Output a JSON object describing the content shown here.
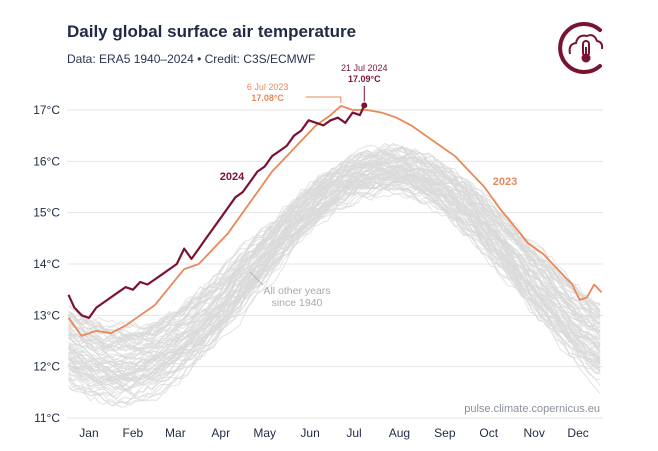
{
  "header": {
    "title": "Daily global surface air temperature",
    "subtitle": "Data: ERA5 1940–2024 • Credit: C3S/ECMWF"
  },
  "logo": {
    "icon": "thermometer-cloud-icon",
    "color": "#7a1330"
  },
  "chart_data": {
    "type": "line",
    "title": "Daily global surface air temperature",
    "xlabel": "",
    "ylabel": "",
    "x_unit": "day of year",
    "xlim": [
      0,
      366
    ],
    "ylim": [
      11,
      17.5
    ],
    "y_ticks": [
      11,
      12,
      13,
      14,
      15,
      16,
      17
    ],
    "y_tick_labels": [
      "11°C",
      "12°C",
      "13°C",
      "14°C",
      "15°C",
      "16°C",
      "17°C"
    ],
    "x_ticks": [
      15,
      45,
      74,
      105,
      135,
      166,
      196,
      227,
      258,
      288,
      319,
      349
    ],
    "x_tick_labels": [
      "Jan",
      "Feb",
      "Mar",
      "Apr",
      "May",
      "Jun",
      "Jul",
      "Aug",
      "Sep",
      "Oct",
      "Nov",
      "Dec"
    ],
    "grid": "horizontal",
    "colors": {
      "y2024": "#7a1330",
      "y2023": "#e8895a",
      "other": "#d9d9d9"
    },
    "series": [
      {
        "name": "2024",
        "x": [
          1,
          5,
          10,
          15,
          20,
          25,
          30,
          35,
          40,
          45,
          50,
          55,
          60,
          65,
          70,
          75,
          80,
          85,
          90,
          95,
          100,
          105,
          110,
          115,
          120,
          125,
          130,
          135,
          140,
          145,
          150,
          155,
          160,
          165,
          170,
          175,
          180,
          185,
          190,
          195,
          200,
          203
        ],
        "y": [
          13.4,
          13.15,
          13.0,
          12.95,
          13.15,
          13.25,
          13.35,
          13.45,
          13.55,
          13.5,
          13.65,
          13.6,
          13.7,
          13.8,
          13.9,
          14.0,
          14.3,
          14.1,
          14.3,
          14.5,
          14.7,
          14.9,
          15.1,
          15.3,
          15.4,
          15.6,
          15.8,
          15.9,
          16.1,
          16.2,
          16.3,
          16.5,
          16.6,
          16.8,
          16.75,
          16.7,
          16.8,
          16.85,
          16.75,
          16.95,
          16.9,
          17.09
        ]
      },
      {
        "name": "2023",
        "x": [
          1,
          10,
          20,
          30,
          40,
          50,
          60,
          70,
          80,
          90,
          100,
          110,
          120,
          130,
          140,
          150,
          160,
          170,
          180,
          187,
          195,
          205,
          215,
          225,
          235,
          245,
          255,
          265,
          275,
          285,
          295,
          305,
          315,
          325,
          335,
          345,
          350,
          355,
          360,
          365
        ],
        "y": [
          12.95,
          12.6,
          12.7,
          12.65,
          12.8,
          13.0,
          13.2,
          13.55,
          13.9,
          14.0,
          14.3,
          14.6,
          15.0,
          15.4,
          15.8,
          16.1,
          16.4,
          16.7,
          16.9,
          17.08,
          17.0,
          17.0,
          16.95,
          16.85,
          16.7,
          16.5,
          16.3,
          16.1,
          15.8,
          15.5,
          15.1,
          14.75,
          14.4,
          14.2,
          13.9,
          13.6,
          13.3,
          13.35,
          13.6,
          13.45
        ]
      }
    ],
    "other_years": {
      "name": "",
      "count": 83,
      "start": 1940,
      "mean_january": 12.1,
      "mean_peak": 15.85,
      "spread": 0.7
    },
    "annotations": {
      "label_2024": "2024",
      "label_2023": "2023",
      "other_years_label_line1": "All other years",
      "other_years_label_line2": "since 1940",
      "peak_2024_date": "21 Jul 2024",
      "peak_2024_value": "17.09°C",
      "peak_2023_date": "6 Jul 2023",
      "peak_2023_value": "17.08°C",
      "source_url": "pulse.climate.copernicus.eu"
    }
  }
}
